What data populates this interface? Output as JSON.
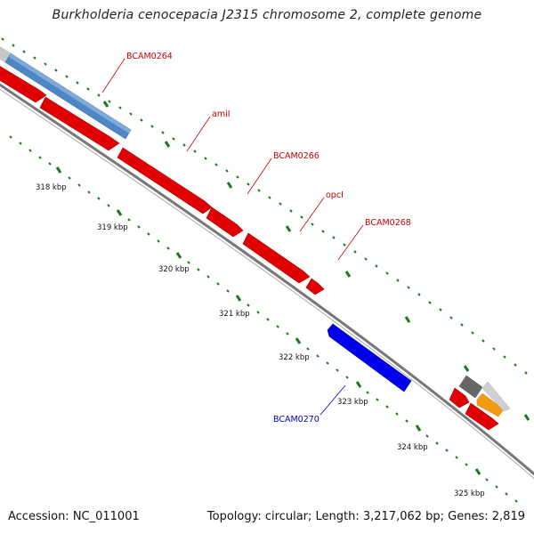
{
  "title": "Burkholderia cenocepacia J2315 chromosome 2, complete genome",
  "footer": {
    "accession": "Accession: NC_011001",
    "summary": "Topology: circular; Length: 3,217,062 bp; Genes: 2,819"
  },
  "scale_labels": [
    "318 kbp",
    "319 kbp",
    "320 kbp",
    "321 kbp",
    "322 kbp",
    "323 kbp",
    "324 kbp",
    "325 kbp"
  ],
  "gene_labels": [
    {
      "text": "BCAM0264",
      "color": "#cc0000"
    },
    {
      "text": "amiI",
      "color": "#cc0000"
    },
    {
      "text": "BCAM0266",
      "color": "#cc0000"
    },
    {
      "text": "opcI",
      "color": "#cc0000"
    },
    {
      "text": "BCAM0268",
      "color": "#cc0000"
    },
    {
      "text": "BCAM0270",
      "color": "#0000cc"
    }
  ],
  "colors": {
    "backbone": "#777777",
    "forward_cds": "#e00000",
    "reverse_cds": "#0000ee",
    "steelblue_feature": "#4f86c6",
    "orange_feature": "#f39c12",
    "gray_feature": "#666666",
    "tick_green": "#1a7a1a"
  }
}
